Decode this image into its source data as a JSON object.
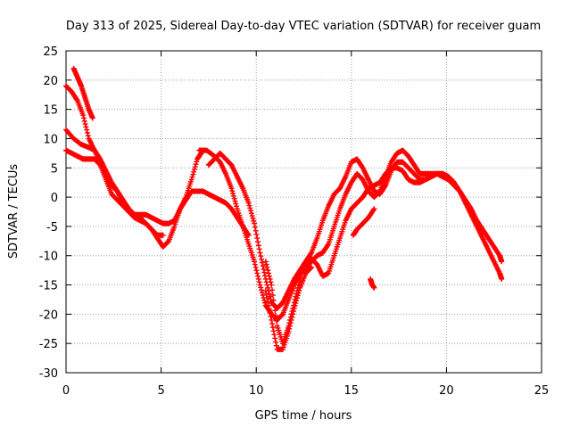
{
  "chart_data": {
    "type": "scatter",
    "title": "Day 313 of 2025, Sidereal Day-to-day VTEC variation (SDTVAR) for receiver guam",
    "xlabel": "GPS time / hours",
    "ylabel": "SDTVAR / TECUs",
    "xlim": [
      0,
      25
    ],
    "ylim": [
      -30,
      25
    ],
    "xticks": [
      0,
      5,
      10,
      15,
      20,
      25
    ],
    "yticks": [
      -30,
      -25,
      -20,
      -15,
      -10,
      -5,
      0,
      5,
      10,
      15,
      20,
      25
    ],
    "grid": true,
    "marker": "+",
    "color": "#ff0000",
    "series": [
      {
        "name": "trace-1",
        "points": [
          [
            0.0,
            19
          ],
          [
            0.3,
            18
          ],
          [
            0.6,
            16.5
          ],
          [
            0.9,
            14
          ],
          [
            1.2,
            10
          ],
          [
            1.5,
            8
          ],
          [
            1.8,
            6
          ],
          [
            2.1,
            4
          ],
          [
            2.4,
            2
          ],
          [
            2.7,
            1
          ],
          [
            3.0,
            -1
          ],
          [
            3.3,
            -2.5
          ],
          [
            3.6,
            -3.5
          ],
          [
            3.9,
            -4
          ],
          [
            4.2,
            -4.5
          ],
          [
            4.5,
            -5.5
          ],
          [
            4.8,
            -6.5
          ],
          [
            5.1,
            -6.5
          ]
        ]
      },
      {
        "name": "trace-2",
        "points": [
          [
            0.0,
            11.5
          ],
          [
            0.4,
            10
          ],
          [
            0.8,
            9
          ],
          [
            1.2,
            8.5
          ],
          [
            1.5,
            8
          ],
          [
            1.8,
            6.5
          ],
          [
            2.1,
            4.5
          ],
          [
            2.4,
            2.5
          ],
          [
            2.7,
            1
          ],
          [
            3.0,
            -0.5
          ],
          [
            3.3,
            -2
          ],
          [
            3.6,
            -3
          ],
          [
            3.9,
            -3.5
          ],
          [
            4.2,
            -4.5
          ],
          [
            4.5,
            -5.5
          ],
          [
            4.8,
            -7
          ],
          [
            5.1,
            -8.5
          ],
          [
            5.4,
            -7.5
          ],
          [
            5.7,
            -5
          ],
          [
            6.0,
            -2
          ],
          [
            6.3,
            0
          ],
          [
            6.6,
            3
          ],
          [
            6.9,
            6.5
          ],
          [
            7.1,
            7.5
          ]
        ]
      },
      {
        "name": "trace-3",
        "points": [
          [
            0.4,
            22
          ],
          [
            0.6,
            20.5
          ],
          [
            0.8,
            19
          ],
          [
            1.0,
            17
          ],
          [
            1.2,
            15
          ],
          [
            1.4,
            13.5
          ]
        ]
      },
      {
        "name": "trace-4",
        "points": [
          [
            0.0,
            8
          ],
          [
            0.3,
            7.5
          ],
          [
            0.6,
            7
          ],
          [
            0.9,
            6.5
          ],
          [
            1.2,
            6.5
          ],
          [
            1.5,
            6.5
          ],
          [
            1.8,
            5.5
          ],
          [
            2.1,
            3
          ],
          [
            2.4,
            0.5
          ],
          [
            2.7,
            -0.5
          ],
          [
            3.0,
            -1.5
          ],
          [
            3.3,
            -2.5
          ],
          [
            3.6,
            -3
          ],
          [
            3.9,
            -3
          ],
          [
            4.2,
            -3
          ],
          [
            4.5,
            -3.5
          ],
          [
            4.8,
            -4
          ],
          [
            5.1,
            -4.5
          ],
          [
            5.4,
            -4.5
          ],
          [
            5.7,
            -4
          ],
          [
            6.0,
            -2
          ],
          [
            6.3,
            -0.5
          ],
          [
            6.6,
            1
          ],
          [
            6.9,
            1
          ],
          [
            7.2,
            1
          ],
          [
            7.5,
            0.5
          ],
          [
            7.8,
            0
          ],
          [
            8.1,
            -0.5
          ],
          [
            8.4,
            -1
          ],
          [
            8.7,
            -2
          ],
          [
            9.0,
            -3.5
          ],
          [
            9.3,
            -5
          ],
          [
            9.6,
            -6.5
          ]
        ]
      },
      {
        "name": "trace-5",
        "points": [
          [
            7.0,
            8
          ],
          [
            7.4,
            8
          ],
          [
            7.8,
            7
          ],
          [
            8.1,
            6
          ],
          [
            8.4,
            4
          ],
          [
            8.7,
            1.5
          ],
          [
            9.0,
            -2
          ],
          [
            9.3,
            -5
          ],
          [
            9.6,
            -8
          ],
          [
            9.9,
            -11
          ],
          [
            10.2,
            -15
          ],
          [
            10.5,
            -18.5
          ],
          [
            10.8,
            -20
          ],
          [
            11.1,
            -21
          ],
          [
            11.4,
            -20
          ],
          [
            11.7,
            -17.5
          ],
          [
            12.0,
            -15
          ],
          [
            12.3,
            -13
          ],
          [
            12.6,
            -12
          ],
          [
            12.9,
            -11
          ],
          [
            13.2,
            -10
          ],
          [
            13.5,
            -9.5
          ],
          [
            13.8,
            -8
          ],
          [
            14.1,
            -5
          ],
          [
            14.4,
            -2
          ],
          [
            14.7,
            0.5
          ],
          [
            15.0,
            2.5
          ],
          [
            15.3,
            4
          ],
          [
            15.6,
            3
          ],
          [
            15.9,
            1
          ],
          [
            16.2,
            0
          ],
          [
            16.5,
            1
          ],
          [
            16.8,
            3.5
          ],
          [
            17.1,
            6
          ],
          [
            17.4,
            7.5
          ],
          [
            17.7,
            8
          ],
          [
            18.0,
            7
          ],
          [
            18.3,
            5.5
          ],
          [
            18.6,
            4
          ],
          [
            18.9,
            4
          ],
          [
            19.2,
            4
          ],
          [
            19.5,
            4
          ],
          [
            19.8,
            3.5
          ],
          [
            20.1,
            3
          ],
          [
            20.4,
            2
          ],
          [
            20.7,
            1
          ],
          [
            21.0,
            -0.5
          ],
          [
            21.3,
            -2
          ],
          [
            21.6,
            -4
          ],
          [
            21.9,
            -5.5
          ],
          [
            22.2,
            -7
          ],
          [
            22.5,
            -8.5
          ],
          [
            22.8,
            -10
          ],
          [
            22.9,
            -11
          ]
        ]
      },
      {
        "name": "trace-6",
        "points": [
          [
            7.5,
            5.5
          ],
          [
            7.8,
            6.5
          ],
          [
            8.1,
            7.5
          ],
          [
            8.4,
            6.5
          ],
          [
            8.7,
            5.5
          ],
          [
            9.0,
            3.5
          ],
          [
            9.3,
            1.5
          ],
          [
            9.6,
            -1
          ],
          [
            9.9,
            -4.5
          ],
          [
            10.2,
            -9.5
          ],
          [
            10.5,
            -14
          ],
          [
            10.8,
            -18
          ],
          [
            11.1,
            -19
          ],
          [
            11.4,
            -18
          ],
          [
            11.7,
            -16
          ],
          [
            12.0,
            -14
          ],
          [
            12.3,
            -12.5
          ],
          [
            12.6,
            -11
          ],
          [
            12.9,
            -9.5
          ],
          [
            13.2,
            -7
          ],
          [
            13.5,
            -4
          ],
          [
            13.8,
            -1.5
          ],
          [
            14.1,
            0.5
          ],
          [
            14.4,
            1.5
          ],
          [
            14.7,
            3.5
          ],
          [
            15.0,
            6
          ],
          [
            15.3,
            6.5
          ],
          [
            15.6,
            5
          ],
          [
            15.9,
            3
          ],
          [
            16.2,
            1
          ],
          [
            16.5,
            0.5
          ],
          [
            16.8,
            2
          ],
          [
            17.1,
            4.5
          ],
          [
            17.4,
            6
          ],
          [
            17.7,
            6
          ],
          [
            18.0,
            5
          ],
          [
            18.3,
            4
          ],
          [
            18.6,
            3
          ],
          [
            18.9,
            3
          ],
          [
            19.2,
            3.5
          ],
          [
            19.5,
            4
          ],
          [
            19.8,
            4
          ],
          [
            20.1,
            3.5
          ],
          [
            20.4,
            2.5
          ],
          [
            20.7,
            1
          ],
          [
            21.0,
            -1
          ],
          [
            21.3,
            -3
          ],
          [
            21.6,
            -5
          ],
          [
            21.9,
            -7
          ],
          [
            22.2,
            -9
          ],
          [
            22.5,
            -11
          ],
          [
            22.8,
            -13
          ],
          [
            22.9,
            -14
          ]
        ]
      },
      {
        "name": "trace-7",
        "points": [
          [
            10.5,
            -11
          ],
          [
            10.8,
            -15
          ],
          [
            11.1,
            -22
          ],
          [
            11.4,
            -25
          ],
          [
            11.7,
            -22
          ],
          [
            12.0,
            -18
          ],
          [
            12.3,
            -14
          ],
          [
            12.6,
            -11
          ],
          [
            12.9,
            -10.5
          ],
          [
            13.2,
            -11.5
          ],
          [
            13.5,
            -13.5
          ],
          [
            13.8,
            -13
          ],
          [
            14.1,
            -10
          ],
          [
            14.4,
            -7
          ],
          [
            14.7,
            -4
          ],
          [
            15.0,
            -2
          ],
          [
            15.3,
            -1
          ],
          [
            15.6,
            0
          ],
          [
            15.9,
            1.5
          ],
          [
            16.2,
            2
          ],
          [
            16.5,
            2.5
          ],
          [
            16.8,
            4
          ],
          [
            17.1,
            5
          ],
          [
            17.4,
            5
          ],
          [
            17.7,
            4.5
          ],
          [
            18.0,
            3
          ],
          [
            18.3,
            2.5
          ],
          [
            18.6,
            2.5
          ],
          [
            18.9,
            3
          ],
          [
            19.2,
            3.5
          ],
          [
            19.5,
            4
          ],
          [
            19.8,
            4
          ],
          [
            20.1,
            3.5
          ],
          [
            20.4,
            2.5
          ]
        ]
      },
      {
        "name": "trace-8",
        "points": [
          [
            10.5,
            -16
          ],
          [
            10.8,
            -21
          ],
          [
            11.1,
            -26
          ],
          [
            11.4,
            -26
          ],
          [
            11.7,
            -23
          ],
          [
            12.0,
            -19
          ],
          [
            12.3,
            -15.5
          ],
          [
            12.6,
            -13
          ],
          [
            12.9,
            -12
          ]
        ]
      },
      {
        "name": "trace-9",
        "points": [
          [
            16.0,
            -14
          ],
          [
            16.1,
            -15
          ],
          [
            16.2,
            -15.5
          ]
        ]
      },
      {
        "name": "trace-10",
        "points": [
          [
            15.1,
            -6.5
          ],
          [
            15.3,
            -5.5
          ],
          [
            15.6,
            -4.5
          ],
          [
            15.9,
            -3.5
          ],
          [
            16.2,
            -2
          ]
        ]
      }
    ]
  }
}
